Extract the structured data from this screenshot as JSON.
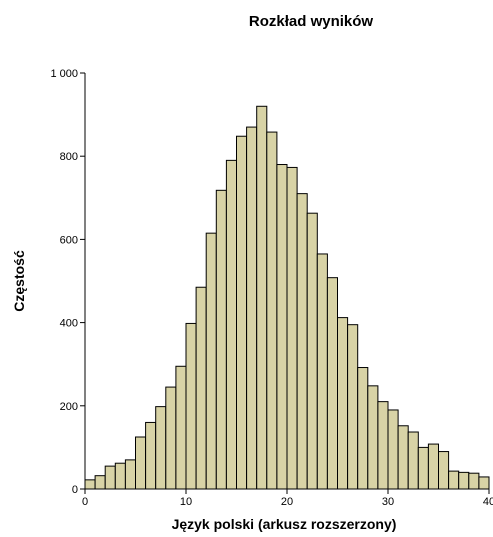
{
  "chart_data": {
    "type": "bar",
    "title": "Rozkład wyników",
    "xlabel": "Język polski (arkusz rozszerzony)",
    "ylabel": "Częstość",
    "xlim": [
      0,
      40
    ],
    "ylim": [
      0,
      1000
    ],
    "x_ticks": [
      0,
      10,
      20,
      30,
      40
    ],
    "x_tick_labels": [
      "0",
      "10",
      "20",
      "30",
      "40"
    ],
    "y_ticks": [
      0,
      200,
      400,
      600,
      800,
      1000
    ],
    "y_tick_labels": [
      "0",
      "200",
      "400",
      "600",
      "800",
      "1 000"
    ],
    "bin_width": 1,
    "bins": [
      0,
      1,
      2,
      3,
      4,
      5,
      6,
      7,
      8,
      9,
      10,
      11,
      12,
      13,
      14,
      15,
      16,
      17,
      18,
      19,
      20,
      21,
      22,
      23,
      24,
      25,
      26,
      27,
      28,
      29,
      30,
      31,
      32,
      33,
      34,
      35,
      36,
      37,
      38,
      39
    ],
    "values": [
      22,
      32,
      55,
      62,
      70,
      125,
      160,
      198,
      245,
      295,
      398,
      485,
      615,
      718,
      790,
      848,
      870,
      920,
      858,
      780,
      773,
      710,
      663,
      565,
      508,
      412,
      395,
      292,
      248,
      210,
      190,
      152,
      137,
      100,
      108,
      90,
      43,
      40,
      38,
      29
    ],
    "grid": false,
    "legend": "none",
    "bar_color": "#d8d3a6",
    "edge_color": "#000000"
  }
}
